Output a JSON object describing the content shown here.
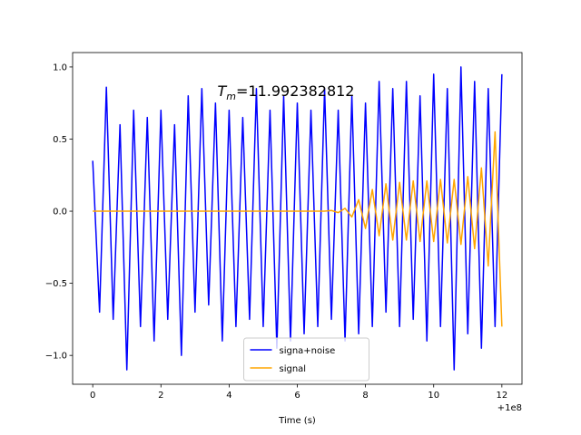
{
  "chart_data": {
    "type": "line",
    "annotation": {
      "symbol": "T",
      "subscript": "m",
      "text": "=11.992382812"
    },
    "x_label": "Time (s)",
    "x_offset_label": "+1e8",
    "x": [
      0,
      0.2,
      0.4,
      0.6,
      0.8,
      1,
      1.2,
      1.4,
      1.6,
      1.8,
      2,
      2.2,
      2.4,
      2.6,
      2.8,
      3,
      3.2,
      3.4,
      3.6,
      3.8,
      4,
      4.2,
      4.4,
      4.6,
      4.8,
      5,
      5.2,
      5.4,
      5.6,
      5.8,
      6,
      6.2,
      6.4,
      6.6,
      6.8,
      7,
      7.2,
      7.4,
      7.6,
      7.8,
      8,
      8.2,
      8.4,
      8.6,
      8.8,
      9,
      9.2,
      9.4,
      9.6,
      9.8,
      10,
      10.2,
      10.4,
      10.6,
      10.8,
      11,
      11.2,
      11.4,
      11.6,
      11.8,
      12
    ],
    "series": [
      {
        "name": "signa+noise",
        "color": "#0000ff",
        "values": [
          0.35,
          -0.7,
          0.86,
          -0.75,
          0.6,
          -1.1,
          0.7,
          -0.8,
          0.65,
          -0.9,
          0.7,
          -0.75,
          0.6,
          -1.0,
          0.8,
          -0.7,
          0.85,
          -0.65,
          0.75,
          -0.9,
          0.7,
          -0.8,
          0.65,
          -0.75,
          0.85,
          -0.8,
          0.7,
          -0.95,
          0.8,
          -0.9,
          0.75,
          -0.85,
          0.7,
          -0.8,
          0.85,
          -0.75,
          0.7,
          -0.9,
          0.8,
          -0.85,
          0.75,
          -0.8,
          0.9,
          -0.7,
          0.85,
          -0.8,
          0.9,
          -0.75,
          0.8,
          -0.9,
          0.95,
          -0.8,
          0.85,
          -1.1,
          1.0,
          -0.85,
          0.9,
          -0.95,
          0.85,
          -0.8,
          0.95
        ]
      },
      {
        "name": "signal",
        "color": "#ffa500",
        "values": [
          0,
          0,
          0,
          0,
          0,
          0,
          0,
          0,
          0,
          0,
          0,
          0,
          0,
          0,
          0,
          0,
          0,
          0,
          0,
          0,
          0,
          0,
          0,
          0,
          0,
          0,
          0,
          0,
          0,
          0,
          0,
          0,
          0,
          0,
          0,
          0.005,
          -0.01,
          0.02,
          -0.04,
          0.08,
          -0.12,
          0.15,
          -0.17,
          0.19,
          -0.2,
          0.2,
          -0.2,
          0.21,
          -0.21,
          0.21,
          -0.21,
          0.22,
          -0.22,
          0.22,
          -0.23,
          0.24,
          -0.26,
          0.3,
          -0.38,
          0.55,
          -0.8
        ]
      }
    ],
    "xlim": [
      -0.59,
      12.59
    ],
    "ylim": [
      -1.2,
      1.1
    ],
    "xticks": [
      0,
      2,
      4,
      6,
      8,
      10,
      12
    ],
    "yticks": [
      {
        "value": -1,
        "label": "−1.0"
      },
      {
        "value": -0.5,
        "label": "−0.5"
      },
      {
        "value": 0,
        "label": "0.0"
      },
      {
        "value": 0.5,
        "label": "0.5"
      },
      {
        "value": 1,
        "label": "1.0"
      }
    ],
    "legend": "lower center"
  }
}
